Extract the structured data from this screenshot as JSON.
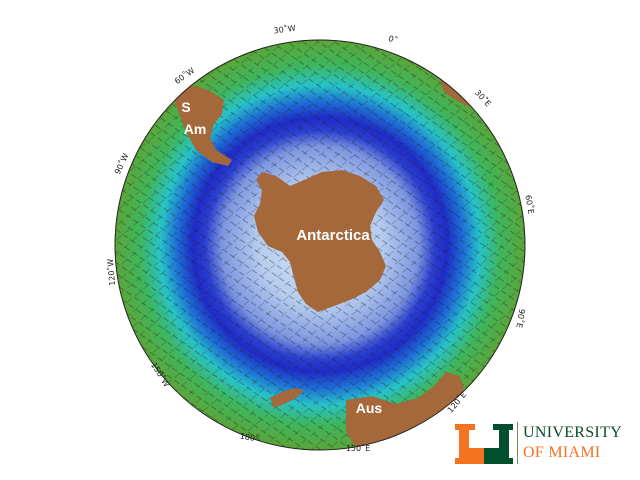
{
  "map": {
    "land_labels": {
      "antarctica": "Antarctica",
      "south_america_line1": "S",
      "south_america_line2": "Am",
      "australia": "Aus"
    },
    "longitude_labels": {
      "w30": "30˚W",
      "zero": "0˚",
      "e30": "30˚E",
      "w60": "60˚W",
      "e60": "60˚E",
      "w90": "90˚W",
      "e90": "90˚E",
      "w120": "120˚W",
      "e120": "120˚E",
      "w150": "150˚W",
      "e150": "150˚E",
      "d180": "180˚"
    },
    "colors": {
      "land": "#a5683a",
      "outer_ocean": "#3aa84a",
      "mid_ocean": "#2fb7b0",
      "current_band": "#1d34c8",
      "inner_ocean": "#a9c4ec"
    }
  },
  "logo": {
    "line1": "UNIVERSITY",
    "line2": "OF MIAMI",
    "colors": {
      "green": "#005030",
      "orange": "#f47321"
    }
  }
}
